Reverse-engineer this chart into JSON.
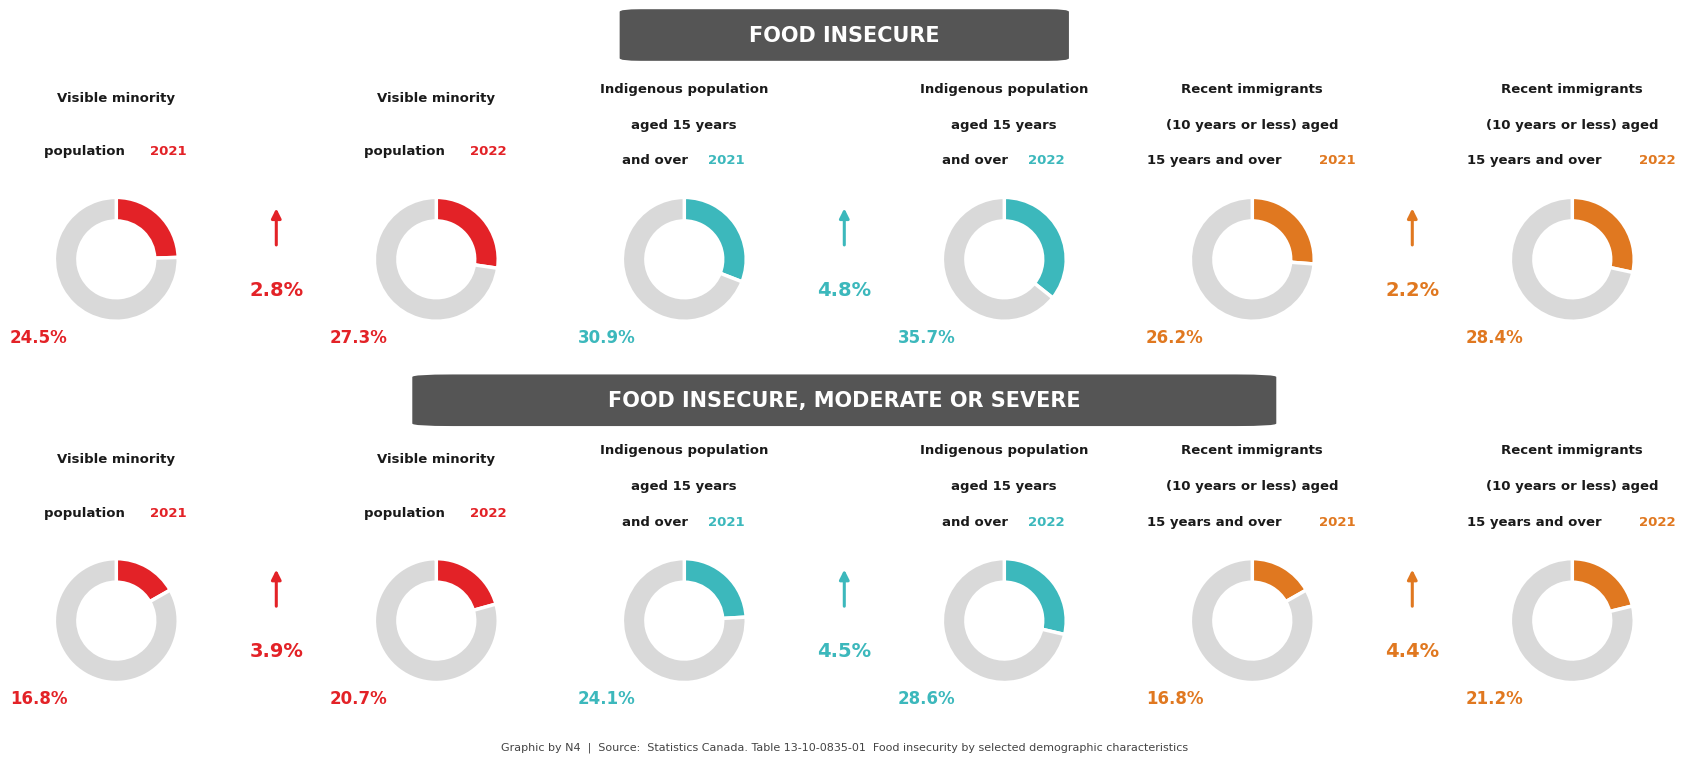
{
  "bg_color": "#ffffff",
  "title1": "FOOD INSECURE",
  "title2": "FOOD INSECURE, MODERATE OR SEVERE",
  "title_bg": "#555555",
  "title_color": "#ffffff",
  "gray_color": "#d9d9d9",
  "footer": "Graphic by N4  |  Source:  Statistics Canada. Table 13-10-0835-01  Food insecurity by selected demographic characteristics",
  "rows": [
    {
      "title": "FOOD INSECURE",
      "charts": [
        {
          "label_lines": [
            "Visible minority",
            "population "
          ],
          "year": "2021",
          "year_color": "#e32227",
          "value": 24.5,
          "color": "#e32227",
          "center_text": "24.5%",
          "change": null
        },
        {
          "label_lines": [
            "Visible minority",
            "population "
          ],
          "year": "2022",
          "year_color": "#e32227",
          "value": 27.3,
          "color": "#e32227",
          "center_text": "27.3%",
          "change": {
            "text": "2.8%",
            "color": "#e32227"
          }
        },
        {
          "label_lines": [
            "Indigenous population",
            "aged 15 years",
            "and over "
          ],
          "year": "2021",
          "year_color": "#3cb8bc",
          "value": 30.9,
          "color": "#3cb8bc",
          "center_text": "30.9%",
          "change": null
        },
        {
          "label_lines": [
            "Indigenous population",
            "aged 15 years",
            "and over "
          ],
          "year": "2022",
          "year_color": "#3cb8bc",
          "value": 35.7,
          "color": "#3cb8bc",
          "center_text": "35.7%",
          "change": {
            "text": "4.8%",
            "color": "#3cb8bc"
          }
        },
        {
          "label_lines": [
            "Recent immigrants",
            "(10 years or less) aged",
            "15 years and over "
          ],
          "year": "2021",
          "year_color": "#e07820",
          "value": 26.2,
          "color": "#e07820",
          "center_text": "26.2%",
          "change": null
        },
        {
          "label_lines": [
            "Recent immigrants",
            "(10 years or less) aged",
            "15 years and over "
          ],
          "year": "2022",
          "year_color": "#e07820",
          "value": 28.4,
          "color": "#e07820",
          "center_text": "28.4%",
          "change": {
            "text": "2.2%",
            "color": "#e07820"
          }
        }
      ]
    },
    {
      "title": "FOOD INSECURE, MODERATE OR SEVERE",
      "charts": [
        {
          "label_lines": [
            "Visible minority",
            "population "
          ],
          "year": "2021",
          "year_color": "#e32227",
          "value": 16.8,
          "color": "#e32227",
          "center_text": "16.8%",
          "change": null
        },
        {
          "label_lines": [
            "Visible minority",
            "population "
          ],
          "year": "2022",
          "year_color": "#e32227",
          "value": 20.7,
          "color": "#e32227",
          "center_text": "20.7%",
          "change": {
            "text": "3.9%",
            "color": "#e32227"
          }
        },
        {
          "label_lines": [
            "Indigenous population",
            "aged 15 years",
            "and over "
          ],
          "year": "2021",
          "year_color": "#3cb8bc",
          "value": 24.1,
          "color": "#3cb8bc",
          "center_text": "24.1%",
          "change": null
        },
        {
          "label_lines": [
            "Indigenous population",
            "aged 15 years",
            "and over "
          ],
          "year": "2022",
          "year_color": "#3cb8bc",
          "value": 28.6,
          "color": "#3cb8bc",
          "center_text": "28.6%",
          "change": {
            "text": "4.5%",
            "color": "#3cb8bc"
          }
        },
        {
          "label_lines": [
            "Recent immigrants",
            "(10 years or less) aged",
            "15 years and over "
          ],
          "year": "2021",
          "year_color": "#e07820",
          "value": 16.8,
          "color": "#e07820",
          "center_text": "16.8%",
          "change": null
        },
        {
          "label_lines": [
            "Recent immigrants",
            "(10 years or less) aged",
            "15 years and over "
          ],
          "year": "2022",
          "year_color": "#e07820",
          "value": 21.2,
          "color": "#e07820",
          "center_text": "21.2%",
          "change": {
            "text": "4.4%",
            "color": "#e07820"
          }
        }
      ]
    }
  ]
}
